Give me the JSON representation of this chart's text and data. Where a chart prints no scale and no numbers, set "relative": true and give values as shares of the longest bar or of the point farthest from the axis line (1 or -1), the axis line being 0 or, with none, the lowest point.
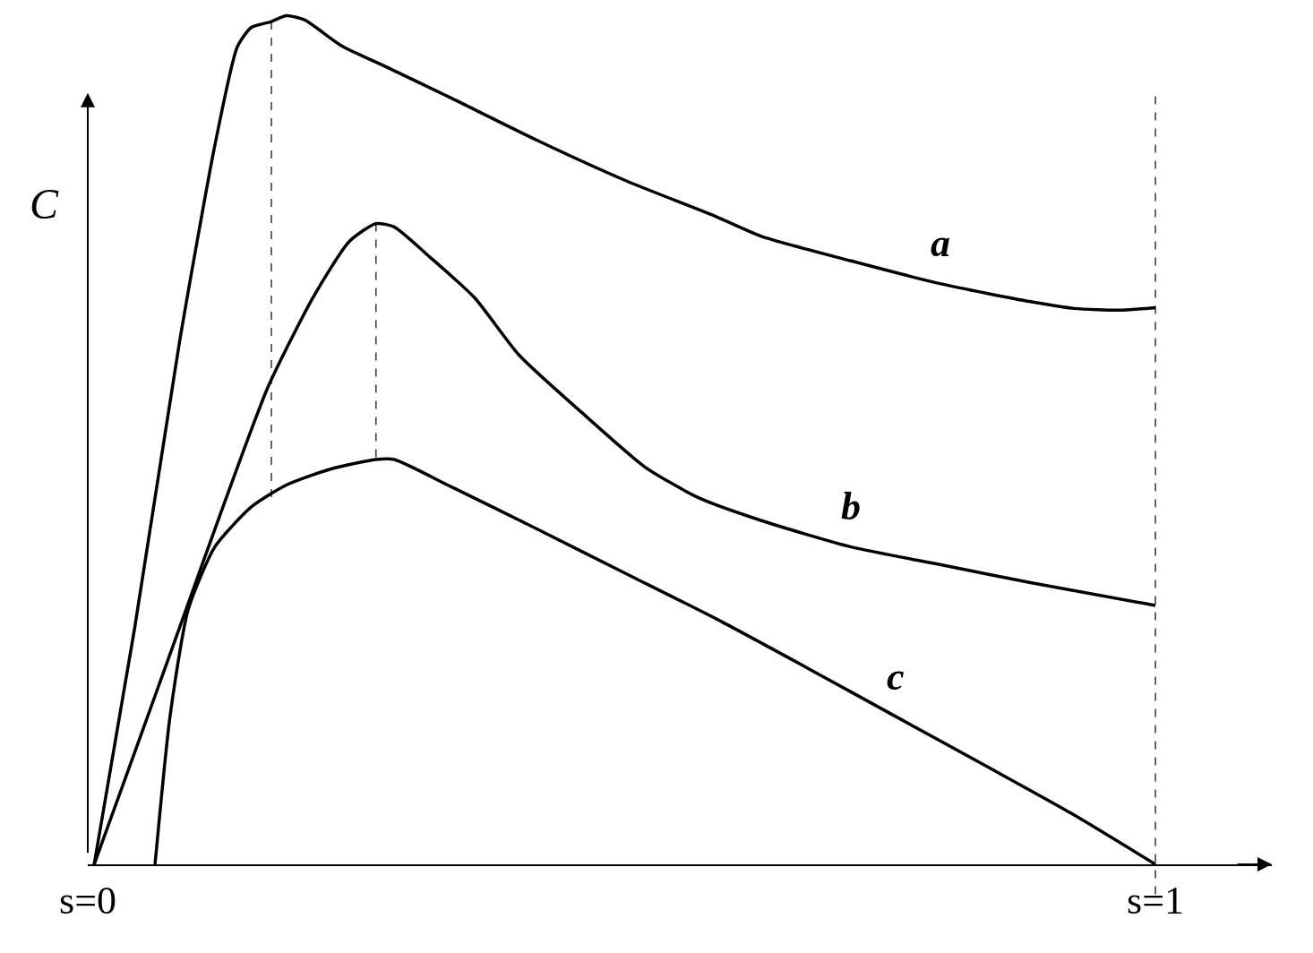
{
  "chart_data": {
    "type": "line",
    "relative": true,
    "ylabel": "C",
    "xlim": [
      0,
      1.109
    ],
    "xticks": [
      {
        "value": 0,
        "label": "s=0"
      },
      {
        "value": 1,
        "label": "s=1"
      }
    ],
    "marker": "none",
    "series": [
      {
        "name": "a",
        "color": "#000000",
        "x": [
          0.006,
          0.044,
          0.086,
          0.119,
          0.14,
          0.153,
          0.172,
          0.186,
          0.203,
          0.237,
          0.279,
          0.337,
          0.421,
          0.505,
          0.589,
          0.631,
          0.715,
          0.799,
          0.883,
          0.924,
          0.966,
          1.0
        ],
        "values": [
          0,
          0.279,
          0.616,
          0.847,
          0.963,
          0.986,
          0.993,
          1,
          0.995,
          0.965,
          0.94,
          0.905,
          0.853,
          0.805,
          0.763,
          0.74,
          0.711,
          0.684,
          0.663,
          0.655,
          0.653,
          0.656
        ]
      },
      {
        "name": "b",
        "color": "#000000",
        "x": [
          0.006,
          0.044,
          0.086,
          0.128,
          0.169,
          0.211,
          0.245,
          0.27,
          0.287,
          0.32,
          0.362,
          0.404,
          0.463,
          0.522,
          0.572,
          0.631,
          0.715,
          0.799,
          0.883,
          1.0
        ],
        "values": [
          0,
          0.132,
          0.279,
          0.426,
          0.563,
          0.668,
          0.734,
          0.755,
          0.751,
          0.716,
          0.668,
          0.6,
          0.532,
          0.468,
          0.432,
          0.405,
          0.374,
          0.353,
          0.332,
          0.305
        ]
      },
      {
        "name": "c",
        "color": "#000000",
        "x": [
          0.063,
          0.077,
          0.094,
          0.119,
          0.153,
          0.186,
          0.228,
          0.27,
          0.287,
          0.337,
          0.421,
          0.505,
          0.589,
          0.673,
          0.757,
          0.841,
          0.924,
          1.0
        ],
        "values": [
          0,
          0.174,
          0.3,
          0.374,
          0.421,
          0.447,
          0.466,
          0.477,
          0.477,
          0.447,
          0.395,
          0.342,
          0.289,
          0.232,
          0.174,
          0.116,
          0.058,
          0
        ]
      },
      {
        "color": "#000000",
        "line_style": "dashed",
        "x": [
          0.172,
          0.172
        ],
        "values": [
          0.993,
          0.432
        ]
      },
      {
        "color": "#000000",
        "line_style": "dashed",
        "x": [
          0.27,
          0.27
        ],
        "values": [
          0.755,
          0.477
        ]
      }
    ],
    "ref_lines": [
      {
        "axis": "x",
        "value": 1,
        "line_style": "dashed"
      }
    ]
  }
}
